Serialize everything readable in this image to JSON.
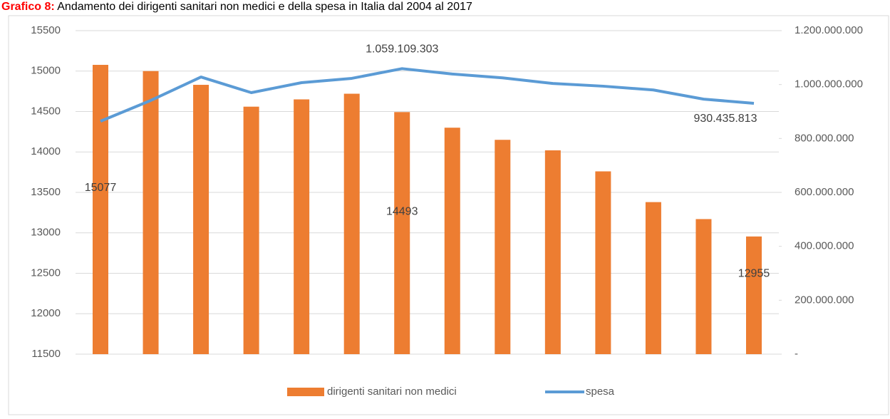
{
  "chart_data": {
    "type": "bar-line",
    "title_prefix": "Grafico 8:",
    "title": "Andamento dei dirigenti sanitari non medici e della spesa in Italia dal 2004 al 2017",
    "categories": [
      null,
      null,
      null,
      null,
      null,
      null,
      null,
      null,
      null,
      null,
      null,
      null,
      null,
      null
    ],
    "series": [
      {
        "name": "dirigenti sanitari non medici",
        "type": "bar",
        "axis": "y",
        "color": "#ed7d31",
        "values": [
          15077,
          15000,
          14830,
          14560,
          14650,
          14720,
          14493,
          14300,
          14150,
          14020,
          13760,
          13380,
          13170,
          12955
        ],
        "value_labels": [
          "15077",
          null,
          null,
          null,
          null,
          null,
          "14493",
          null,
          null,
          null,
          null,
          null,
          null,
          "12955"
        ]
      },
      {
        "name": "spesa",
        "type": "line",
        "axis": "y2",
        "color": "#5b9bd5",
        "values": [
          864000000,
          941000000,
          1028000000,
          970000000,
          1007000000,
          1023000000,
          1059109303,
          1039000000,
          1025000000,
          1004000000,
          994000000,
          980000000,
          946000000,
          930435813
        ],
        "value_labels": [
          null,
          null,
          null,
          null,
          null,
          null,
          "1.059.109.303",
          null,
          null,
          null,
          null,
          null,
          null,
          "930.435.813"
        ]
      }
    ],
    "ylim": [
      11500,
      15500
    ],
    "yticks": [
      11500,
      12000,
      12500,
      13000,
      13500,
      14000,
      14500,
      15000,
      15500
    ],
    "y2lim": [
      0,
      1200000000
    ],
    "y2ticks": [
      {
        "value": 0,
        "label": "-"
      },
      {
        "value": 200000000,
        "label": "200.000.000"
      },
      {
        "value": 400000000,
        "label": "400.000.000"
      },
      {
        "value": 600000000,
        "label": "600.000.000"
      },
      {
        "value": 800000000,
        "label": "800.000.000"
      },
      {
        "value": 1000000000,
        "label": "1.000.000.000"
      },
      {
        "value": 1200000000,
        "label": "1.200.000.000"
      }
    ],
    "grid": true,
    "legend": "bottom"
  }
}
